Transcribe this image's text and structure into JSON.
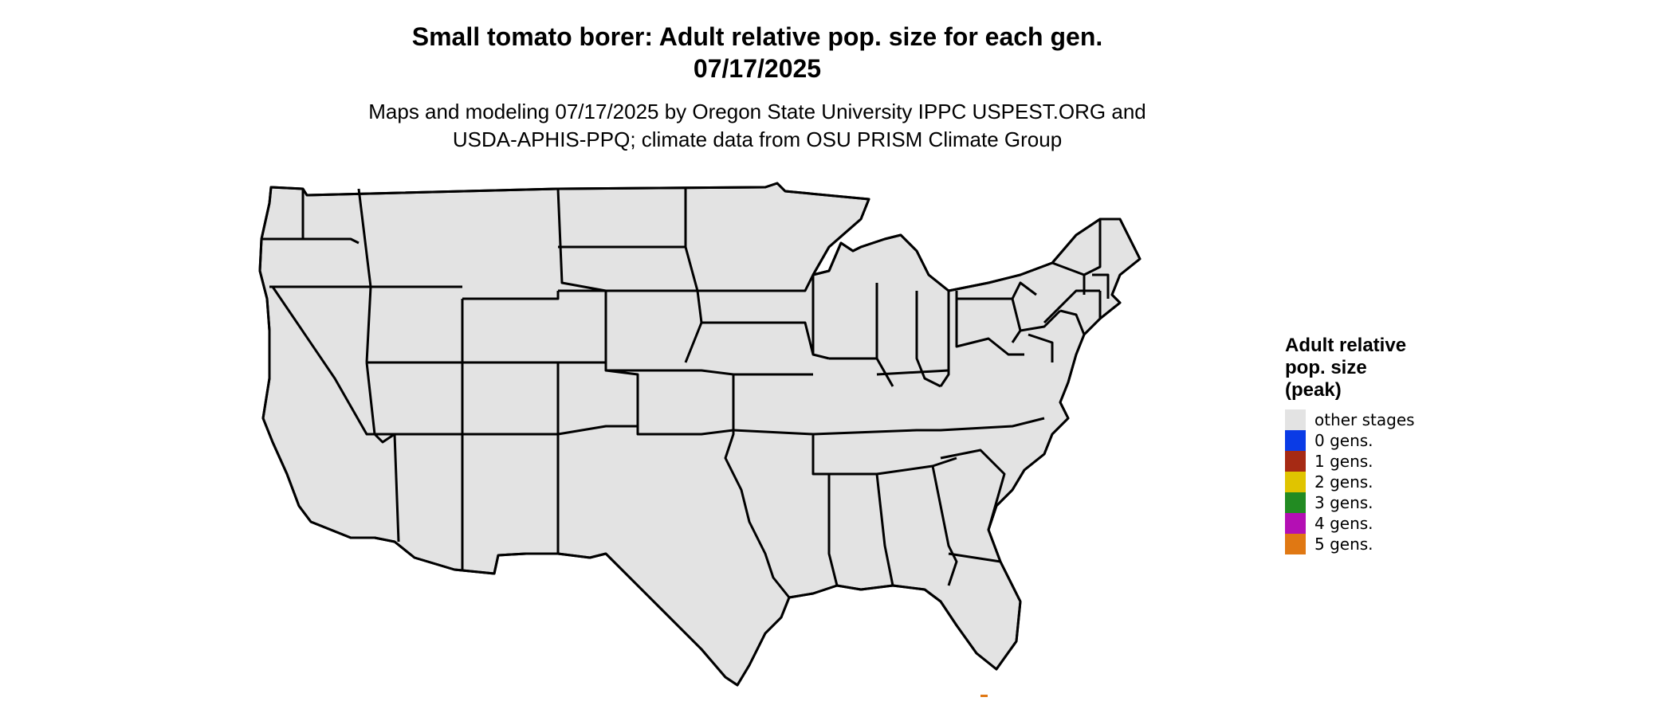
{
  "title": {
    "line1": "Small tomato borer: Adult relative pop. size for each gen.",
    "line2": "07/17/2025"
  },
  "subtitle": {
    "line1": "Maps and modeling 07/17/2025 by Oregon State University IPPC USPEST.ORG and",
    "line2": "USDA-APHIS-PPQ; climate data from OSU PRISM Climate Group"
  },
  "legend": {
    "title_lines": [
      "Adult relative",
      "pop. size",
      "(peak)"
    ],
    "items": [
      {
        "label": "other stages",
        "color": "#e3e3e3"
      },
      {
        "label": "0 gens.",
        "color": "#0a3be6"
      },
      {
        "label": "1 gens.",
        "color": "#a62a14"
      },
      {
        "label": "2 gens.",
        "color": "#e0c400"
      },
      {
        "label": "3 gens.",
        "color": "#228b22"
      },
      {
        "label": "4 gens.",
        "color": "#b40fb4"
      },
      {
        "label": "5 gens.",
        "color": "#e07813"
      }
    ]
  },
  "map": {
    "region": "Contiguous United States",
    "background_color": "#e3e3e3",
    "border_color": "#000000",
    "accent_colors": {
      "gen1_bright": "#e8420f",
      "gen2_bright": "#e6d600",
      "gen3_light": "#5fbf4f",
      "gen4_bright": "#cc1ccc"
    }
  }
}
